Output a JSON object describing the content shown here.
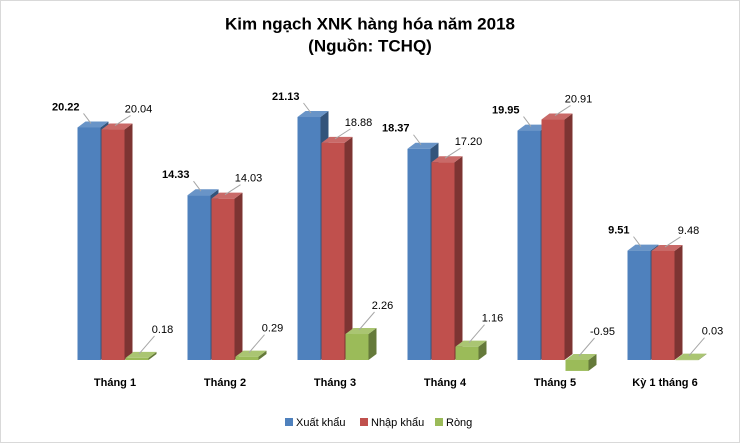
{
  "chart_data": {
    "type": "bar3d",
    "title": "Kim ngạch XNK hàng hóa năm 2018",
    "subtitle": "(Nguồn: TCHQ)",
    "categories": [
      "Tháng 1",
      "Tháng 2",
      "Tháng 3",
      "Tháng 4",
      "Tháng 5",
      "Kỳ 1 tháng 6"
    ],
    "series": [
      {
        "name": "Xuất khẩu",
        "color": "#4f81bd",
        "values": [
          20.22,
          14.33,
          21.13,
          18.37,
          19.95,
          9.51
        ],
        "value_labels": [
          "20.22",
          "14.33",
          "21.13",
          "18.37",
          "19.95",
          "9.51"
        ]
      },
      {
        "name": "Nhập khẩu",
        "color": "#c0504d",
        "values": [
          20.04,
          14.03,
          18.88,
          17.2,
          20.91,
          9.48
        ],
        "value_labels": [
          "20.04",
          "14.03",
          "18.88",
          "17.20",
          "20.91",
          "9.48"
        ]
      },
      {
        "name": "Ròng",
        "color": "#9bbb59",
        "values": [
          0.18,
          0.29,
          2.26,
          1.16,
          -0.95,
          0.03
        ],
        "value_labels": [
          "0.18",
          "0.29",
          "2.26",
          "1.16",
          "-0.95",
          "0.03"
        ]
      }
    ],
    "ylim": [
      -2,
      22
    ],
    "legend": "bottom"
  }
}
